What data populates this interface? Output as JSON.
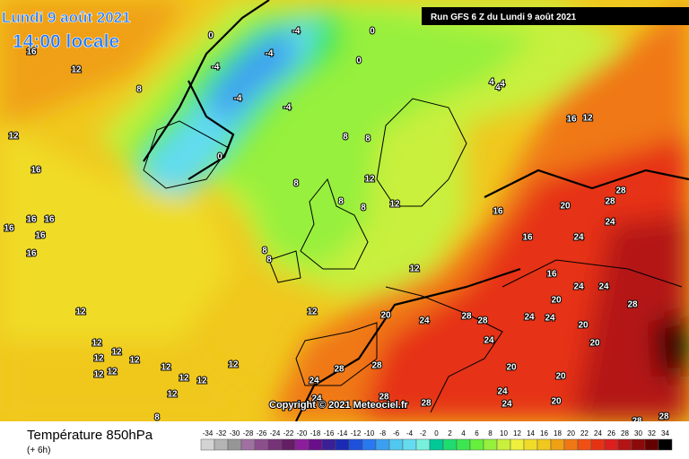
{
  "header": {
    "date": "Lundi 9 août 2021",
    "time": "14:00 locale",
    "run": "Run GFS 6 Z du Lundi 9 août 2021"
  },
  "copyright": "Copyright © 2021 Meteociel.fr",
  "footer": {
    "title": "Température 850hPa",
    "lead": "(+ 6h)"
  },
  "scale": {
    "values": [
      -34,
      -32,
      -30,
      -28,
      -26,
      -24,
      -22,
      -20,
      -18,
      -16,
      -14,
      -12,
      -10,
      -8,
      -6,
      -4,
      -2,
      0,
      2,
      4,
      6,
      8,
      10,
      12,
      14,
      16,
      18,
      20,
      22,
      24,
      26,
      28,
      30,
      32,
      34
    ],
    "colors": [
      "#d3d3d3",
      "#b4b4b4",
      "#969696",
      "#a070a0",
      "#8c4f8c",
      "#783278",
      "#641e64",
      "#8c1e9c",
      "#6a0f8a",
      "#3b1f96",
      "#1a2ab4",
      "#1e50dc",
      "#2878f0",
      "#3ca0f0",
      "#50c8f0",
      "#64dcf0",
      "#78f0dc",
      "#00c896",
      "#1edc6e",
      "#3ce650",
      "#64f03c",
      "#96f03c",
      "#c8f03c",
      "#f0f03c",
      "#f0dc28",
      "#f0c81e",
      "#f0a014",
      "#f07814",
      "#f05014",
      "#e63214",
      "#dc1e1e",
      "#b41414",
      "#8c0a0a",
      "#640000",
      "#000000"
    ]
  },
  "map_labels": [
    16,
    12,
    12,
    16,
    16,
    16,
    16,
    16,
    16,
    12,
    12,
    12,
    12,
    12,
    12,
    12,
    12,
    12,
    12,
    12,
    12,
    8,
    4,
    0,
    -4,
    -4,
    -4,
    -4,
    -4,
    0,
    0,
    0,
    8,
    8,
    8,
    8,
    8,
    8,
    12,
    8,
    8,
    12,
    4,
    4,
    12,
    12,
    16,
    16,
    12,
    20,
    16,
    24,
    28,
    24,
    24,
    28,
    20,
    24,
    20,
    24,
    28,
    20,
    24,
    20,
    28,
    28,
    24,
    28,
    24,
    20,
    28,
    20,
    24,
    24,
    28,
    28,
    20,
    16,
    16,
    24,
    28,
    24,
    28
  ]
}
